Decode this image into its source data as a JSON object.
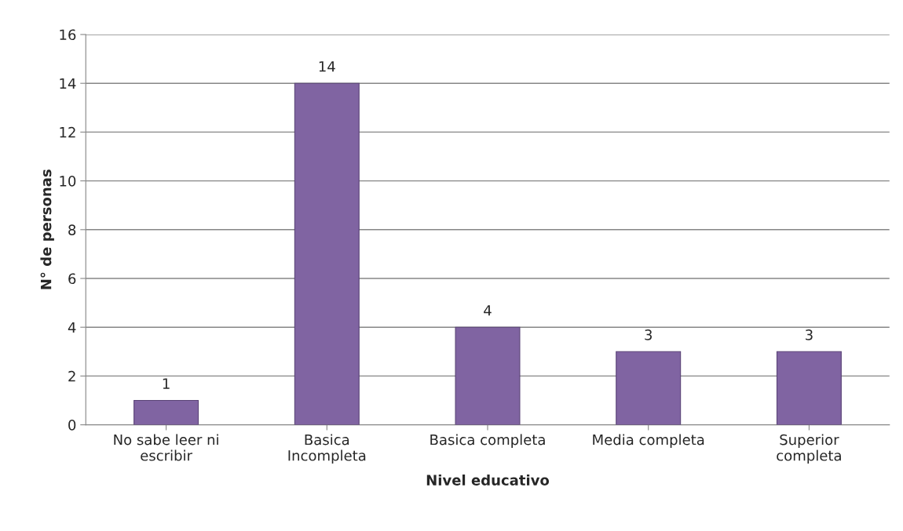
{
  "chart_data": {
    "type": "bar",
    "xlabel": "Nivel educativo",
    "ylabel": "N° de personas",
    "categories": [
      "No sabe leer ni\nescribir",
      "Basica\nIncompleta",
      "Basica completa",
      "Media completa",
      "Superior\ncompleta"
    ],
    "values": [
      1,
      14,
      4,
      3,
      3
    ],
    "color": "#8064a2",
    "ylim": [
      0,
      16
    ],
    "yticks": [
      0,
      2,
      4,
      6,
      8,
      10,
      12,
      14,
      16
    ],
    "grid": "y",
    "data_labels": true
  }
}
